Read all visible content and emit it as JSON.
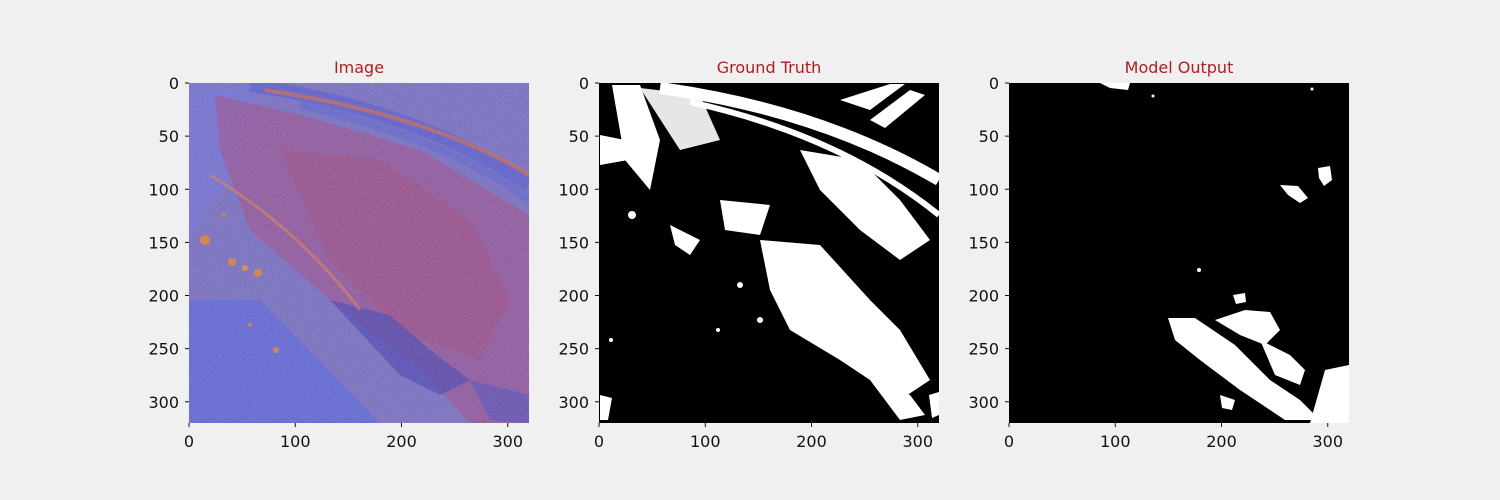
{
  "colors": {
    "background": "#f0f0f0",
    "title": "#b01e1e",
    "mask_background": "#000000",
    "mask_foreground": "#ffffff",
    "image_base": "#7a5aa8",
    "image_red_tone": "#a03a6a",
    "image_blue_tone": "#4a55d0",
    "image_orange_spots": "#e07a20"
  },
  "chart_data": [
    {
      "type": "image",
      "title": "Image",
      "xlim": [
        0,
        320
      ],
      "ylim": [
        320,
        0
      ],
      "x_ticks": [
        0,
        100,
        200,
        300
      ],
      "y_ticks": [
        0,
        50,
        100,
        150,
        200,
        250,
        300
      ],
      "grid": false
    },
    {
      "type": "image",
      "title": "Ground Truth",
      "xlim": [
        0,
        320
      ],
      "ylim": [
        320,
        0
      ],
      "x_ticks": [
        0,
        100,
        200,
        300
      ],
      "y_ticks": [
        0,
        50,
        100,
        150,
        200,
        250,
        300
      ],
      "grid": false
    },
    {
      "type": "image",
      "title": "Model Output",
      "xlim": [
        0,
        320
      ],
      "ylim": [
        320,
        0
      ],
      "x_ticks": [
        0,
        100,
        200,
        300
      ],
      "y_ticks": [
        0,
        50,
        100,
        150,
        200,
        250,
        300
      ],
      "grid": false
    }
  ]
}
